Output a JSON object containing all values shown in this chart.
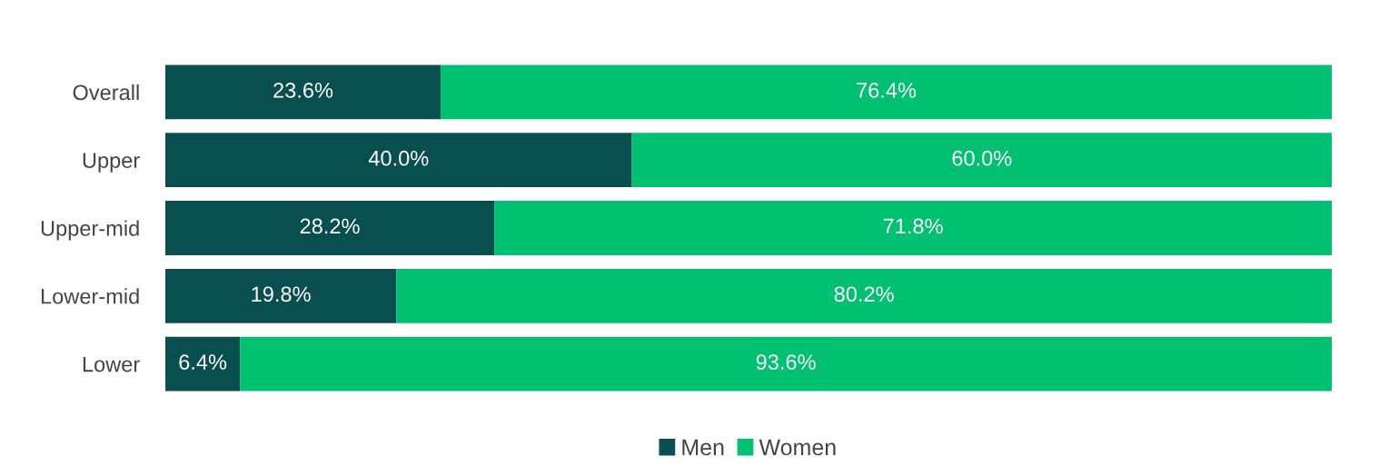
{
  "chart_data": {
    "type": "bar",
    "orientation": "horizontal",
    "stacked": true,
    "categories": [
      "Overall",
      "Upper",
      "Upper-mid",
      "Lower-mid",
      "Lower"
    ],
    "series": [
      {
        "name": "Men",
        "color": "#0a4f50",
        "values": [
          23.6,
          40.0,
          28.2,
          19.8,
          6.4
        ],
        "value_labels": [
          "23.6%",
          "40.0%",
          "28.2%",
          "19.8%",
          "6.4%"
        ]
      },
      {
        "name": "Women",
        "color": "#00c071",
        "values": [
          76.4,
          60.0,
          71.8,
          80.2,
          93.6
        ],
        "value_labels": [
          "76.4%",
          "60.0%",
          "71.8%",
          "80.2%",
          "93.6%"
        ]
      }
    ],
    "legend": "bottom",
    "grid": false
  }
}
